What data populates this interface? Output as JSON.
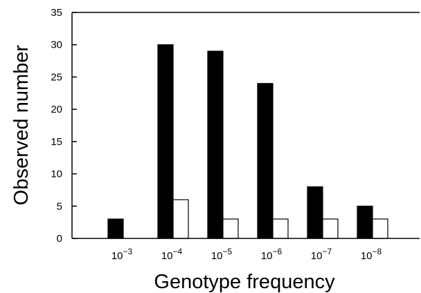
{
  "chart_data": {
    "type": "bar",
    "title": "",
    "xlabel": "Genotype frequency",
    "ylabel": "Observed number",
    "categories": [
      {
        "base": "10",
        "exp": "−3"
      },
      {
        "base": "10",
        "exp": "−4"
      },
      {
        "base": "10",
        "exp": "−5"
      },
      {
        "base": "10",
        "exp": "−6"
      },
      {
        "base": "10",
        "exp": "−7"
      },
      {
        "base": "10",
        "exp": "−8"
      }
    ],
    "series": [
      {
        "fill": "#000000",
        "values": [
          3,
          30,
          29,
          24,
          8,
          5
        ]
      },
      {
        "fill": "#ffffff",
        "values": [
          0,
          6,
          3,
          3,
          3,
          3
        ]
      }
    ],
    "ylim": [
      0,
      35
    ],
    "yticks": [
      "0",
      "5",
      "10",
      "15",
      "20",
      "25",
      "30",
      "35"
    ],
    "grid": false,
    "legend": "none"
  }
}
